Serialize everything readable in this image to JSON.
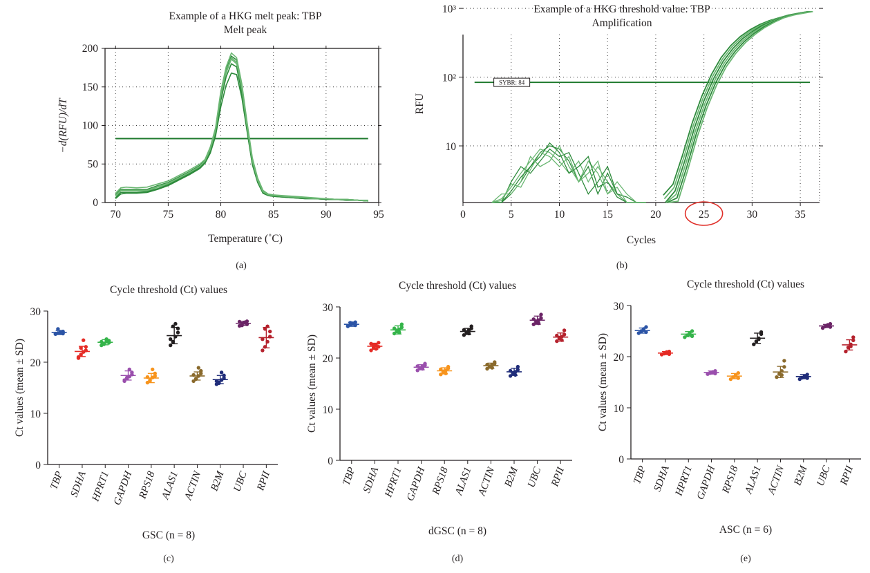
{
  "colors": {
    "trace": "#2e8b3c",
    "trace_light": "#6bb773",
    "threshold": "#1f7a2e",
    "highlight_circle": "#e0302a",
    "TBP": "#2b54a6",
    "SDHA": "#e52b25",
    "HPRT1": "#35b44a",
    "GAPDH": "#9a4fad",
    "RPS18": "#f7941d",
    "ALAS1": "#231f20",
    "ACTIN": "#8a6a2c",
    "B2M": "#202d7a",
    "UBC": "#6b2466",
    "RPII": "#b5222d"
  },
  "chart_data": [
    {
      "type": "line",
      "panel": "(a)",
      "title": "Example of a HKG melt peak: TBP",
      "subtitle": "Melt peak",
      "xlabel": "Temperature (˚C)",
      "ylabel": "−d(RFU)/dT",
      "xlim": [
        69,
        95
      ],
      "ylim": [
        0,
        200
      ],
      "xticks": [
        70,
        75,
        80,
        85,
        90,
        95
      ],
      "yticks": [
        0,
        50,
        100,
        150,
        200
      ],
      "grid": true,
      "threshold": 83,
      "base_x": [
        70,
        70.5,
        71,
        72,
        73,
        74,
        75,
        76,
        77,
        78,
        78.5,
        79,
        79.5,
        80,
        80.5,
        81,
        81.5,
        82,
        82.5,
        83,
        83.5,
        84,
        84.5,
        85,
        86,
        87,
        88,
        89,
        90,
        91,
        92,
        93,
        94
      ],
      "series": [
        {
          "values": [
            10,
            17,
            17,
            17,
            17,
            22,
            26,
            33,
            40,
            48,
            55,
            70,
            95,
            140,
            172,
            190,
            185,
            150,
            100,
            55,
            30,
            15,
            10,
            9,
            8,
            7,
            6,
            5,
            5,
            4,
            4,
            3,
            2
          ]
        },
        {
          "values": [
            8,
            15,
            15,
            15,
            15,
            20,
            24,
            31,
            38,
            46,
            53,
            68,
            92,
            136,
            168,
            186,
            180,
            146,
            96,
            52,
            28,
            14,
            10,
            9,
            8,
            7,
            6,
            5,
            4,
            4,
            4,
            3,
            2
          ]
        },
        {
          "values": [
            6,
            13,
            13,
            13,
            14,
            18,
            23,
            30,
            37,
            45,
            52,
            66,
            90,
            132,
            163,
            180,
            176,
            142,
            94,
            50,
            27,
            13,
            9,
            8,
            7,
            6,
            5,
            5,
            4,
            4,
            3,
            3,
            2
          ]
        },
        {
          "values": [
            12,
            19,
            20,
            19,
            20,
            24,
            28,
            35,
            42,
            50,
            56,
            72,
            97,
            144,
            176,
            194,
            188,
            154,
            104,
            58,
            32,
            16,
            11,
            10,
            9,
            8,
            7,
            6,
            5,
            4,
            4,
            3,
            3
          ]
        },
        {
          "values": [
            5,
            11,
            12,
            12,
            13,
            17,
            22,
            29,
            36,
            44,
            51,
            64,
            86,
            124,
            152,
            168,
            166,
            136,
            92,
            49,
            26,
            12,
            9,
            8,
            7,
            6,
            5,
            5,
            4,
            4,
            3,
            3,
            2
          ]
        },
        {
          "values": [
            9,
            16,
            16,
            16,
            16,
            21,
            25,
            32,
            39,
            47,
            54,
            69,
            93,
            138,
            170,
            188,
            182,
            148,
            98,
            54,
            29,
            14,
            10,
            9,
            8,
            7,
            6,
            5,
            5,
            4,
            4,
            3,
            2
          ]
        }
      ]
    },
    {
      "type": "line",
      "panel": "(b)",
      "title": "Example of a HKG threshold value: TBP",
      "subtitle": "Amplification",
      "xlabel": "Cycles",
      "ylabel": "RFU",
      "xlim": [
        0,
        37
      ],
      "xticks": [
        0,
        5,
        10,
        15,
        20,
        25,
        30,
        35
      ],
      "yscale": "log",
      "yticks": [
        "10",
        "10²",
        "10³"
      ],
      "grid": true,
      "threshold": 84,
      "threshold_label": "SYBR: 84",
      "highlighted_tick": "25",
      "growth_x": [
        21,
        22,
        23,
        24,
        25,
        26,
        27,
        28,
        29,
        30,
        31,
        32,
        33,
        34,
        35,
        36
      ],
      "growth_values": [
        1.5,
        2.2,
        6,
        18,
        45,
        95,
        170,
        260,
        360,
        460,
        560,
        650,
        730,
        800,
        850,
        900
      ],
      "noise_x": [
        3,
        4,
        5,
        6,
        7,
        8,
        9,
        10,
        11,
        12,
        13,
        14,
        15,
        16,
        17,
        18,
        19
      ],
      "noise_series": [
        [
          1.5,
          1.5,
          2,
          3,
          5,
          8,
          10,
          9,
          6,
          3,
          5,
          2,
          4,
          2,
          1.5,
          1.5,
          1.5
        ],
        [
          1.5,
          1.7,
          2.5,
          4,
          6,
          9,
          8,
          6,
          4,
          6,
          3,
          5,
          3,
          2,
          1.5,
          1.5,
          1.5
        ],
        [
          1.5,
          1.5,
          3,
          5,
          4,
          6,
          9,
          7,
          8,
          4,
          2,
          3,
          5,
          2,
          1.8,
          1.5,
          1.5
        ],
        [
          1.5,
          2,
          2,
          3,
          7,
          5,
          6,
          10,
          5,
          3,
          6,
          4,
          2,
          3,
          2,
          1.5,
          1.5
        ],
        [
          1.5,
          1.5,
          2.2,
          3.5,
          5,
          7,
          11,
          8,
          4,
          5,
          7,
          2.5,
          3,
          1.8,
          1.5,
          1.5,
          1.5
        ],
        [
          1.5,
          1.6,
          2.8,
          2.5,
          4.5,
          8,
          7,
          5,
          7,
          3,
          4,
          6,
          2,
          2.5,
          1.5,
          1.5,
          1.5
        ]
      ]
    },
    {
      "type": "scatter",
      "panel": "(c)",
      "title": "Cycle threshold (Ct) values",
      "xlabel": "GSC (n = 8)",
      "ylabel": "Ct values (mean ± SD)",
      "ylim": [
        0,
        30
      ],
      "yticks": [
        0,
        10,
        20,
        30
      ],
      "categories": [
        "TBP",
        "SDHA",
        "HPRT1",
        "GAPDH",
        "RPS18",
        "ALAS1",
        "ACTIN",
        "B2M",
        "UBC",
        "RPII"
      ],
      "mean": [
        25.8,
        22.1,
        23.9,
        17.4,
        16.9,
        25.2,
        17.3,
        16.6,
        27.6,
        24.8
      ],
      "sd": [
        0.4,
        1.0,
        0.5,
        0.9,
        0.9,
        1.6,
        0.8,
        0.8,
        0.4,
        2.0
      ],
      "points": [
        [
          25.5,
          25.7,
          25.9,
          26.0,
          25.6,
          25.8,
          26.5,
          25.6
        ],
        [
          20.8,
          21.5,
          22.0,
          22.3,
          23.0,
          24.3,
          22.8,
          21.0
        ],
        [
          23.3,
          23.6,
          24.0,
          24.2,
          23.8,
          24.5,
          23.5,
          24.0
        ],
        [
          16.3,
          16.8,
          17.2,
          17.6,
          18.0,
          18.6,
          17.0,
          16.5
        ],
        [
          16.0,
          16.5,
          17.0,
          17.3,
          17.8,
          18.6,
          16.4,
          17.1
        ],
        [
          23.3,
          24.0,
          25.0,
          25.8,
          26.6,
          27.5,
          27.0,
          24.5
        ],
        [
          16.3,
          16.8,
          17.3,
          17.8,
          18.3,
          18.9,
          16.7,
          17.5
        ],
        [
          15.7,
          16.1,
          16.5,
          16.9,
          17.4,
          18.0,
          15.9,
          16.3
        ],
        [
          27.1,
          27.5,
          27.8,
          28.0,
          27.4,
          27.7,
          27.2,
          27.9
        ],
        [
          22.3,
          23.0,
          24.0,
          25.0,
          26.0,
          27.0,
          26.5,
          24.5
        ]
      ]
    },
    {
      "type": "scatter",
      "panel": "(d)",
      "title": "Cycle threshold (Ct) values",
      "xlabel": "dGSC (n = 8)",
      "ylabel": "Ct values (mean ± SD)",
      "ylim": [
        0,
        30
      ],
      "yticks": [
        0,
        10,
        20,
        30
      ],
      "categories": [
        "TBP",
        "SDHA",
        "HPRT1",
        "GAPDH",
        "RPS18",
        "ALAS1",
        "ACTIN",
        "B2M",
        "UBC",
        "RPII"
      ],
      "mean": [
        26.6,
        22.3,
        25.5,
        18.2,
        17.5,
        25.2,
        18.5,
        17.3,
        27.4,
        24.1
      ],
      "sd": [
        0.4,
        0.6,
        0.8,
        0.5,
        0.6,
        0.6,
        0.5,
        0.7,
        0.8,
        0.8
      ],
      "points": [
        [
          26.2,
          26.5,
          26.8,
          27.0,
          26.4,
          26.7,
          26.9,
          26.3
        ],
        [
          21.5,
          22.0,
          22.5,
          23.0,
          22.2,
          21.8,
          22.6,
          22.8
        ],
        [
          24.8,
          25.2,
          25.6,
          26.0,
          26.6,
          25.0,
          25.4,
          25.8
        ],
        [
          17.6,
          18.0,
          18.3,
          18.6,
          18.9,
          17.9,
          18.1,
          18.4
        ],
        [
          16.8,
          17.2,
          17.6,
          18.0,
          18.3,
          17.0,
          17.4,
          17.8
        ],
        [
          24.5,
          25.0,
          25.4,
          25.8,
          26.2,
          24.8,
          25.1,
          25.5
        ],
        [
          17.9,
          18.3,
          18.6,
          18.9,
          19.2,
          18.1,
          18.4,
          18.7
        ],
        [
          16.5,
          16.9,
          17.3,
          17.7,
          18.3,
          16.7,
          17.1,
          17.5
        ],
        [
          26.6,
          27.0,
          27.4,
          27.8,
          28.5,
          26.8,
          27.2,
          27.6
        ],
        [
          23.3,
          23.8,
          24.2,
          24.6,
          25.4,
          23.5,
          24.0,
          24.4
        ]
      ]
    },
    {
      "type": "scatter",
      "panel": "(e)",
      "title": "Cycle threshold (Ct) values",
      "xlabel": "ASC (n = 6)",
      "ylabel": "Ct values (mean ± SD)",
      "ylim": [
        0,
        30
      ],
      "yticks": [
        0,
        10,
        20,
        30
      ],
      "categories": [
        "TBP",
        "SDHA",
        "HPRT1",
        "GAPDH",
        "RPS18",
        "ALAS1",
        "ACTIN",
        "B2M",
        "UBC",
        "RPII"
      ],
      "mean": [
        25.1,
        20.7,
        24.4,
        16.9,
        16.2,
        23.6,
        17.0,
        16.1,
        26.0,
        22.3
      ],
      "sd": [
        0.5,
        0.3,
        0.5,
        0.3,
        0.5,
        1.0,
        1.1,
        0.4,
        0.3,
        1.0
      ],
      "points": [
        [
          24.6,
          25.0,
          25.4,
          25.8,
          24.8,
          25.2
        ],
        [
          20.4,
          20.6,
          20.8,
          21.0,
          20.5,
          20.9
        ],
        [
          23.8,
          24.2,
          24.6,
          25.0,
          24.0,
          24.4
        ],
        [
          16.6,
          16.8,
          17.0,
          17.2,
          16.7,
          16.9
        ],
        [
          15.6,
          16.0,
          16.4,
          16.8,
          15.8,
          16.2
        ],
        [
          22.4,
          23.0,
          23.6,
          24.4,
          24.8,
          23.4
        ],
        [
          16.0,
          16.6,
          17.2,
          18.0,
          19.2,
          16.4
        ],
        [
          15.6,
          15.9,
          16.2,
          16.5,
          15.8,
          16.1
        ],
        [
          25.6,
          25.9,
          26.2,
          26.4,
          25.8,
          26.1
        ],
        [
          21.0,
          21.8,
          22.4,
          23.2,
          23.8,
          22.0
        ]
      ]
    }
  ]
}
